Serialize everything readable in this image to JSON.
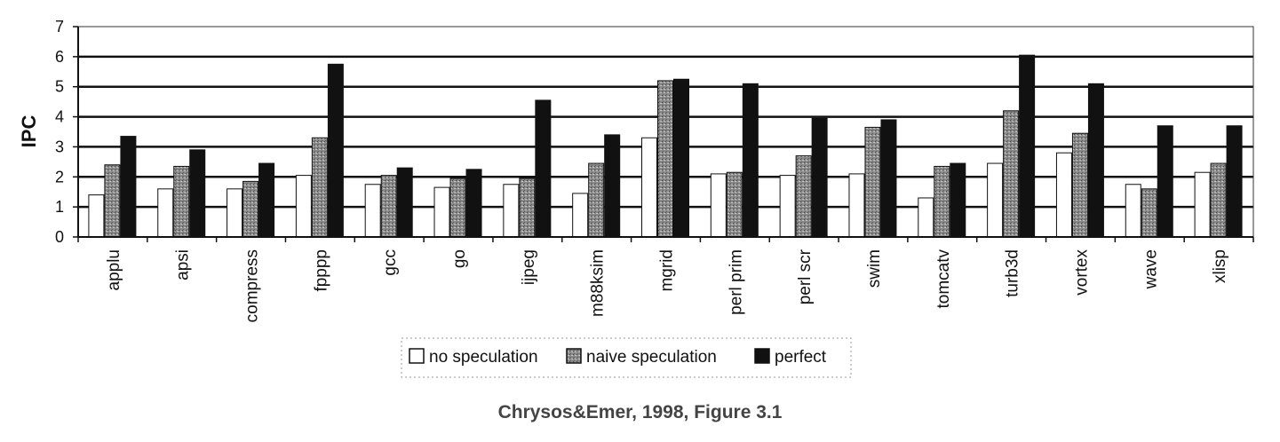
{
  "caption": "Chrysos&Emer, 1998, Figure 3.1",
  "chart_data": {
    "type": "bar",
    "title": "",
    "xlabel": "",
    "ylabel": "IPC",
    "ylim": [
      0,
      7
    ],
    "yticks": [
      "0",
      "1",
      "2",
      "3",
      "4",
      "5",
      "6",
      "7"
    ],
    "grid": true,
    "legend_position": "bottom-center",
    "categories": [
      "applu",
      "apsi",
      "compress",
      "fpppp",
      "gcc",
      "go",
      "ijpeg",
      "m88ksim",
      "mgrid",
      "perl prim",
      "perl scr",
      "swim",
      "tomcatv",
      "turb3d",
      "vortex",
      "wave",
      "xlisp"
    ],
    "series": [
      {
        "name": "no speculation",
        "color": "#ffffff",
        "values": [
          1.4,
          1.6,
          1.6,
          2.05,
          1.75,
          1.65,
          1.75,
          1.45,
          3.3,
          2.1,
          2.05,
          2.1,
          1.3,
          2.45,
          2.8,
          1.75,
          2.15
        ]
      },
      {
        "name": "naive speculation",
        "color": "#8a8a8a",
        "values": [
          2.4,
          2.35,
          1.85,
          3.3,
          2.05,
          1.95,
          1.95,
          2.45,
          5.2,
          2.15,
          2.7,
          3.65,
          2.35,
          4.2,
          3.45,
          1.6,
          2.45
        ]
      },
      {
        "name": "perfect",
        "color": "#111111",
        "values": [
          3.35,
          2.9,
          2.45,
          5.75,
          2.3,
          2.25,
          4.55,
          3.4,
          5.25,
          5.1,
          3.95,
          3.9,
          2.45,
          6.05,
          5.1,
          3.7,
          3.7
        ]
      }
    ]
  }
}
